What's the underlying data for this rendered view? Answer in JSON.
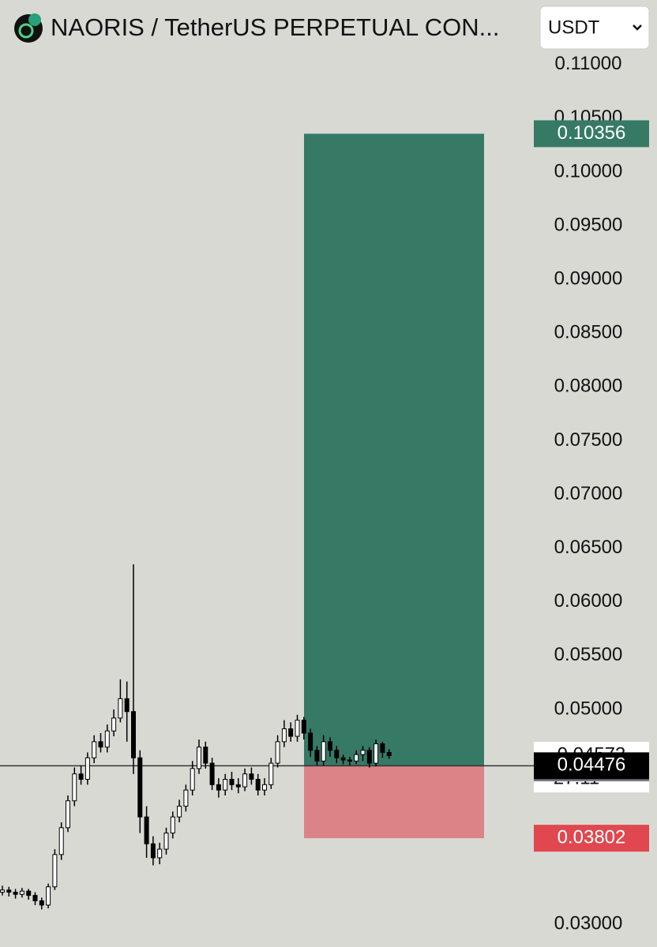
{
  "chart_data": {
    "type": "candlestick",
    "title": "NAORIS / TetherUS PERPETUAL CON...",
    "currency_selector": "USDT",
    "up_color": "#ffffff",
    "down_color": "#000000",
    "open": [
      0.033,
      0.0332,
      0.033,
      0.0328,
      0.0331,
      0.0327,
      0.0322,
      0.0318,
      0.0335,
      0.0365,
      0.039,
      0.0415,
      0.044,
      0.0435,
      0.0455,
      0.047,
      0.0465,
      0.048,
      0.0492,
      0.051,
      0.0498,
      0.0455,
      0.04,
      0.0375,
      0.0362,
      0.037,
      0.0385,
      0.04,
      0.041,
      0.0425,
      0.0445,
      0.0465,
      0.045,
      0.043,
      0.0425,
      0.0435,
      0.043,
      0.0428,
      0.044,
      0.0435,
      0.0425,
      0.043,
      0.045,
      0.047,
      0.0482,
      0.0475,
      0.049,
      0.0478,
      0.0462,
      0.0452,
      0.047,
      0.0462,
      0.0455,
      0.0453,
      0.0452,
      0.0458,
      0.0462,
      0.045,
      0.0468,
      0.046
    ],
    "high": [
      0.0336,
      0.0335,
      0.0333,
      0.0334,
      0.0333,
      0.033,
      0.0325,
      0.0338,
      0.037,
      0.0395,
      0.042,
      0.0446,
      0.0448,
      0.046,
      0.0476,
      0.0478,
      0.0486,
      0.05,
      0.0528,
      0.0526,
      0.0635,
      0.0462,
      0.041,
      0.0382,
      0.0376,
      0.039,
      0.0405,
      0.0416,
      0.043,
      0.0452,
      0.0472,
      0.047,
      0.0455,
      0.0436,
      0.044,
      0.0442,
      0.0436,
      0.0445,
      0.0446,
      0.044,
      0.0436,
      0.0455,
      0.0476,
      0.049,
      0.0488,
      0.0495,
      0.0493,
      0.0482,
      0.0466,
      0.0476,
      0.0474,
      0.0466,
      0.0458,
      0.0456,
      0.0462,
      0.0466,
      0.0465,
      0.0472,
      0.047,
      0.0463
    ],
    "low": [
      0.0327,
      0.0326,
      0.0324,
      0.0325,
      0.0323,
      0.0318,
      0.0314,
      0.0315,
      0.0332,
      0.036,
      0.0386,
      0.041,
      0.043,
      0.043,
      0.045,
      0.046,
      0.046,
      0.0475,
      0.0488,
      0.047,
      0.044,
      0.0385,
      0.0362,
      0.0355,
      0.0356,
      0.0365,
      0.038,
      0.0395,
      0.0405,
      0.042,
      0.044,
      0.0445,
      0.0425,
      0.0418,
      0.042,
      0.0425,
      0.0422,
      0.0424,
      0.043,
      0.042,
      0.042,
      0.0426,
      0.0446,
      0.0465,
      0.047,
      0.047,
      0.0472,
      0.0456,
      0.0448,
      0.0448,
      0.0456,
      0.045,
      0.0449,
      0.0448,
      0.0449,
      0.0452,
      0.0446,
      0.0447,
      0.0455,
      0.0454
    ],
    "close": [
      0.0332,
      0.033,
      0.0328,
      0.0331,
      0.0327,
      0.0322,
      0.0318,
      0.0335,
      0.0365,
      0.039,
      0.0415,
      0.044,
      0.0435,
      0.0455,
      0.047,
      0.0465,
      0.048,
      0.0492,
      0.051,
      0.0498,
      0.0455,
      0.04,
      0.0375,
      0.0362,
      0.037,
      0.0385,
      0.04,
      0.041,
      0.0425,
      0.0445,
      0.0465,
      0.045,
      0.043,
      0.0425,
      0.0435,
      0.043,
      0.0428,
      0.044,
      0.0435,
      0.0425,
      0.043,
      0.045,
      0.047,
      0.0482,
      0.0475,
      0.049,
      0.0478,
      0.0462,
      0.0452,
      0.047,
      0.0462,
      0.0455,
      0.0453,
      0.0452,
      0.0458,
      0.0462,
      0.045,
      0.0468,
      0.046,
      0.0457
    ],
    "ylim": [
      0.0279,
      0.116
    ],
    "yticks": [
      {
        "value": 0.11,
        "label": "0.11000"
      },
      {
        "value": 0.105,
        "label": "0.10500"
      },
      {
        "value": 0.1,
        "label": "0.10000"
      },
      {
        "value": 0.095,
        "label": "0.09500"
      },
      {
        "value": 0.09,
        "label": "0.09000"
      },
      {
        "value": 0.085,
        "label": "0.08500"
      },
      {
        "value": 0.08,
        "label": "0.08000"
      },
      {
        "value": 0.075,
        "label": "0.07500"
      },
      {
        "value": 0.07,
        "label": "0.07000"
      },
      {
        "value": 0.065,
        "label": "0.06500"
      },
      {
        "value": 0.06,
        "label": "0.06000"
      },
      {
        "value": 0.055,
        "label": "0.05500"
      },
      {
        "value": 0.05,
        "label": "0.05000"
      },
      {
        "value": 0.03,
        "label": "0.03000"
      }
    ],
    "position": {
      "target": 0.10356,
      "entry": 0.04476,
      "stop": 0.03802,
      "target_color": "#367a66",
      "entry_color": "#000000",
      "stop_color": "#e0474e",
      "profit_fill": "#367a66",
      "loss_fill": "#db8387"
    },
    "markers": [
      {
        "value": 0.04573,
        "countdown": "27:11",
        "color": "#ffffff"
      },
      {
        "value": 0.04456,
        "color": "#787b86"
      }
    ]
  }
}
